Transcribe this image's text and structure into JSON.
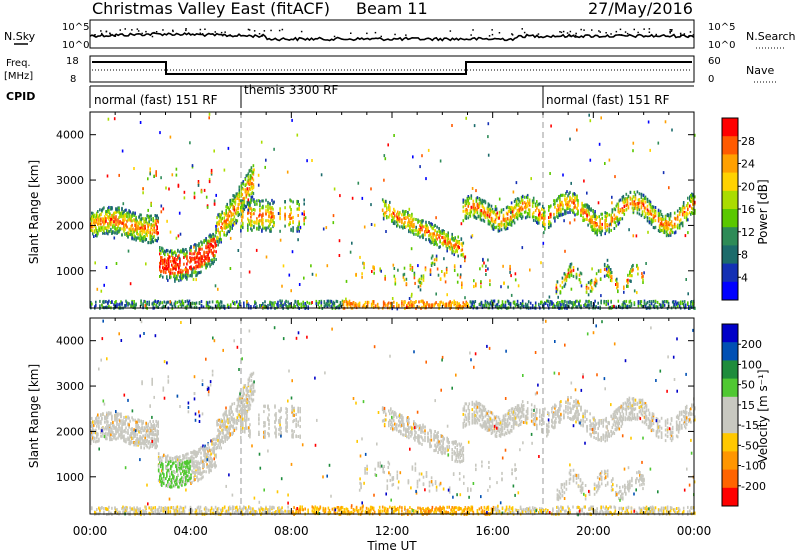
{
  "header": {
    "title": "Christmas Valley East (fitACF)",
    "beam": "Beam 11",
    "date": "27/May/2016"
  },
  "noise_panel": {
    "left_label": "N.Sky",
    "right_label": "N.Search",
    "left_ticks": [
      "10^5",
      "10^0"
    ],
    "right_ticks": [
      "10^5",
      "10^0"
    ]
  },
  "freq_panel": {
    "left_label_1": "Freq.",
    "left_label_2": "[MHz]",
    "right_label": "Nave",
    "left_ticks": [
      "18",
      "8"
    ],
    "right_ticks": [
      "60",
      "0"
    ]
  },
  "cpid_panel": {
    "label": "CPID",
    "segments": [
      {
        "label": "normal (fast) 151 RF",
        "start": 0,
        "end": 6
      },
      {
        "label": "themis 3300 RF",
        "start": 6,
        "end": 18
      },
      {
        "label": "normal (fast) 151 RF",
        "start": 18,
        "end": 24
      }
    ]
  },
  "chart_data": [
    {
      "type": "heatmap",
      "name": "power",
      "ylabel": "Slant Range [km]",
      "ylim": [
        180,
        4500
      ],
      "y_ticks": [
        "4000",
        "3000",
        "2000",
        "1000"
      ],
      "y_tick_values": [
        4000,
        3000,
        2000,
        1000
      ],
      "colorbar_label": "Power [dB]",
      "colorbar_ticks": [
        "28",
        "24",
        "20",
        "16",
        "12",
        "8",
        "4"
      ],
      "colorbar_colors": [
        "#ff0000",
        "#ff5a00",
        "#ffa000",
        "#ffd200",
        "#aadc00",
        "#5ac800",
        "#2e8b57",
        "#1c6b6b",
        "#1430b4",
        "#0000ff"
      ]
    },
    {
      "type": "heatmap",
      "name": "velocity",
      "ylabel": "Slant Range [km]",
      "ylim": [
        180,
        4500
      ],
      "y_ticks": [
        "4000",
        "3000",
        "2000",
        "1000"
      ],
      "y_tick_values": [
        4000,
        3000,
        2000,
        1000
      ],
      "colorbar_label": "Velocity [m s⁻¹]",
      "colorbar_ticks": [
        "200",
        "100",
        "50",
        "15",
        "-15",
        "-50",
        "-100",
        "-200"
      ],
      "colorbar_colors": [
        "#0000c8",
        "#0050b4",
        "#1e8c3c",
        "#50c832",
        "#c8c8c0",
        "#c8c8c0",
        "#ffc800",
        "#ff9600",
        "#ff6400",
        "#ff0000"
      ]
    }
  ],
  "x_axis": {
    "label": "Time UT",
    "ticks": [
      "00:00",
      "04:00",
      "08:00",
      "12:00",
      "16:00",
      "20:00",
      "00:00"
    ],
    "tick_hours": [
      0,
      4,
      8,
      12,
      16,
      20,
      24
    ]
  }
}
